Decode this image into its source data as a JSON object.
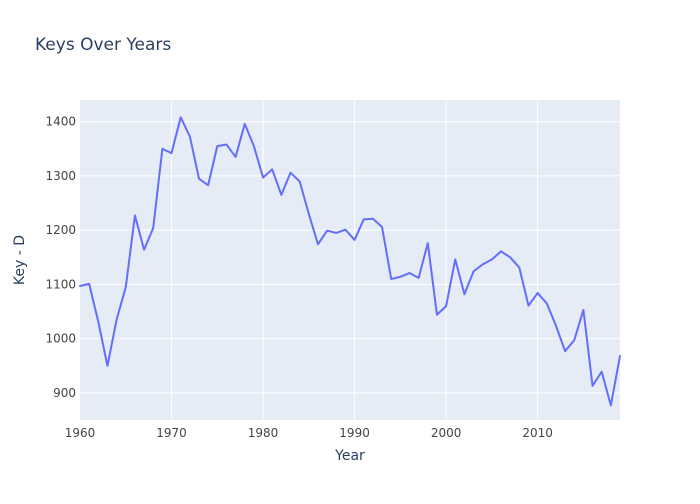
{
  "chart_data": {
    "type": "line",
    "title": "Keys Over Years",
    "xlabel": "Year",
    "ylabel": "Key - D",
    "xlim": [
      1960,
      2019
    ],
    "ylim": [
      850,
      1440
    ],
    "xticks": [
      1960,
      1970,
      1980,
      1990,
      2000,
      2010
    ],
    "yticks": [
      900,
      1000,
      1100,
      1200,
      1300,
      1400
    ],
    "grid": true,
    "legend": false,
    "colors": {
      "line": "#636efa",
      "plot_bg": "#e5ecf6",
      "grid": "#ffffff",
      "text": "#2a3f5f",
      "tick_text": "#444444"
    },
    "series": [
      {
        "x": [
          1960,
          1961,
          1962,
          1963,
          1964,
          1965,
          1966,
          1967,
          1968,
          1969,
          1970,
          1971,
          1972,
          1973,
          1974,
          1975,
          1976,
          1977,
          1978,
          1979,
          1980,
          1981,
          1982,
          1983,
          1984,
          1985,
          1986,
          1987,
          1988,
          1989,
          1990,
          1991,
          1992,
          1993,
          1994,
          1995,
          1996,
          1997,
          1998,
          1999,
          2000,
          2001,
          2002,
          2003,
          2004,
          2005,
          2006,
          2007,
          2008,
          2009,
          2010,
          2011,
          2012,
          2013,
          2014,
          2015,
          2016,
          2017,
          2018,
          2019
        ],
        "values": [
          1097,
          1101,
          1031,
          950,
          1035,
          1095,
          1227,
          1164,
          1204,
          1350,
          1342,
          1408,
          1373,
          1295,
          1283,
          1355,
          1358,
          1335,
          1396,
          1355,
          1297,
          1312,
          1265,
          1306,
          1290,
          1230,
          1174,
          1199,
          1195,
          1201,
          1182,
          1220,
          1221,
          1206,
          1110,
          1114,
          1121,
          1112,
          1176,
          1044,
          1060,
          1146,
          1082,
          1124,
          1137,
          1146,
          1161,
          1150,
          1131,
          1061,
          1084,
          1065,
          1024,
          977,
          997,
          1053,
          913,
          939,
          877,
          968
        ]
      }
    ]
  }
}
